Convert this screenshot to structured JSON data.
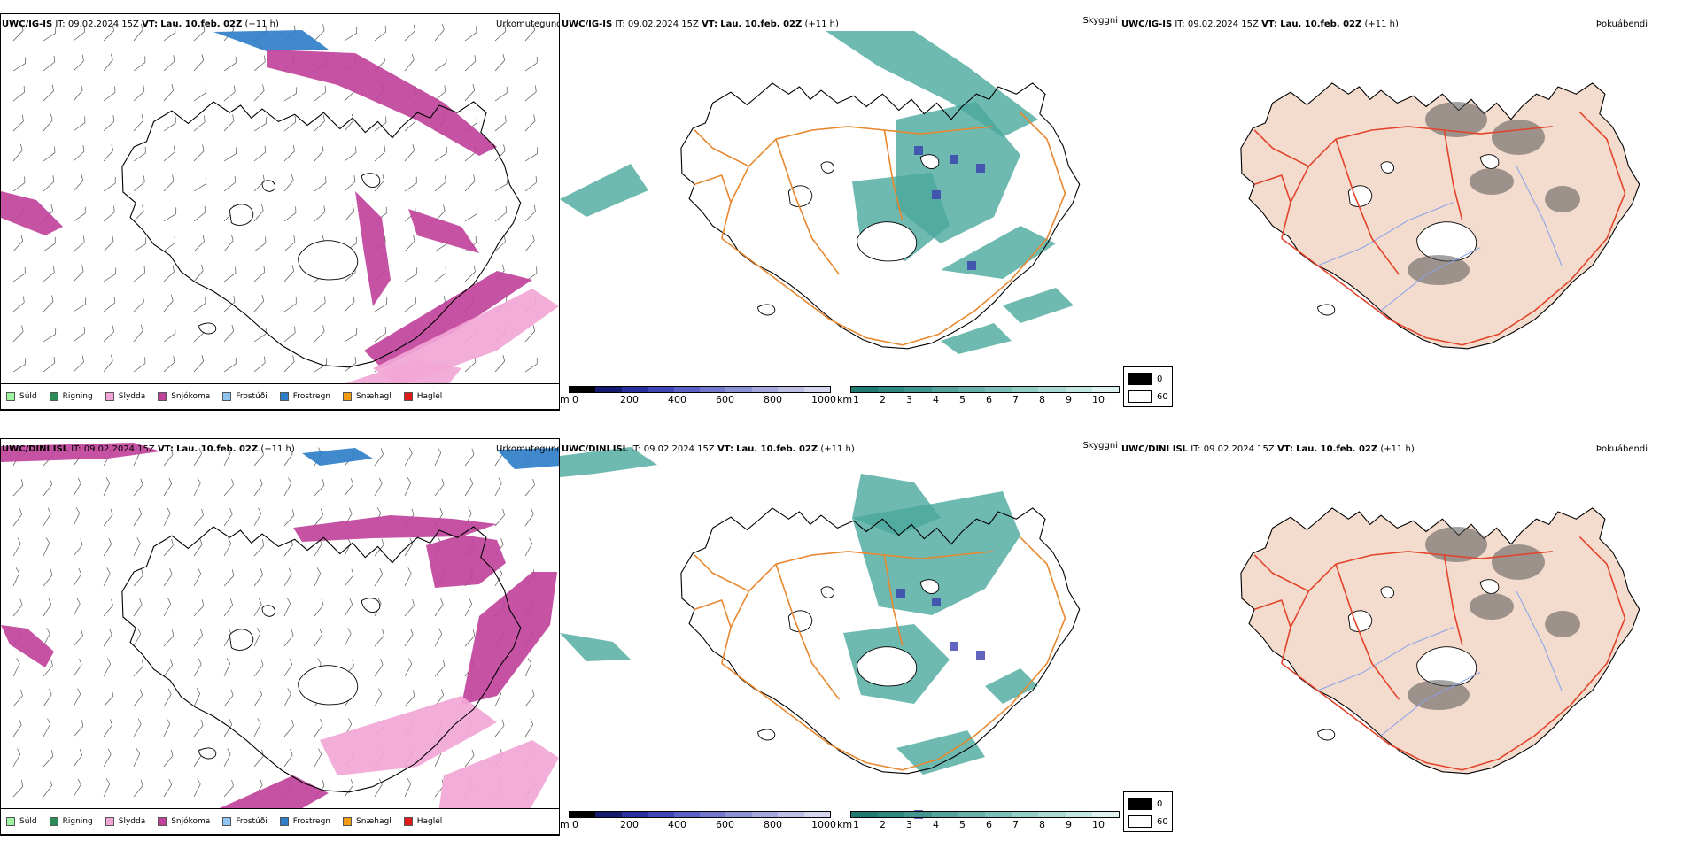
{
  "rows": [
    {
      "model": "UWC/IG-IS",
      "it_label": "IT:",
      "it_value": "09.02.2024 15Z",
      "vt_label": "VT:",
      "vt_value": "Lau. 10.feb. 02Z",
      "lead": "(+11 h)"
    },
    {
      "model": "UWC/DINI ISL",
      "it_label": "IT:",
      "it_value": "09.02.2024 15Z",
      "vt_label": "VT:",
      "vt_value": "Lau. 10.feb. 02Z",
      "lead": "(+11 h)"
    }
  ],
  "panels": {
    "precip_type": {
      "title": "Úrkomutegund"
    },
    "visibility": {
      "title": "Skyggni"
    },
    "fog": {
      "title": "Þokuábendi"
    }
  },
  "precip_legend": [
    {
      "label": "Súld",
      "color": "#9ff59f"
    },
    {
      "label": "Rigning",
      "color": "#2e8b57"
    },
    {
      "label": "Slydda",
      "color": "#f2a6d6"
    },
    {
      "label": "Snjókoma",
      "color": "#c0439b"
    },
    {
      "label": "Frostúði",
      "color": "#8ec5f2"
    },
    {
      "label": "Frostregn",
      "color": "#2f7fc8"
    },
    {
      "label": "Snæhagl",
      "color": "#f39c12"
    },
    {
      "label": "Haglél",
      "color": "#e11b1b"
    }
  ],
  "ceiling_bar": {
    "unit": "m",
    "ticks": [
      "0",
      "200",
      "400",
      "600",
      "800",
      "1000"
    ],
    "colors": [
      "#000000",
      "#141a6e",
      "#2a2f9e",
      "#4046b8",
      "#5a5fc4",
      "#7378cc",
      "#8c90d4",
      "#a5a8dc",
      "#bdbfe4",
      "#d6d7ee"
    ]
  },
  "visibility_bar": {
    "unit": "km",
    "ticks": [
      "1",
      "2",
      "3",
      "4",
      "5",
      "6",
      "7",
      "8",
      "9",
      "10"
    ],
    "colors": [
      "#1f7a72",
      "#2f8880",
      "#40968e",
      "#52a49c",
      "#66b2aa",
      "#7bc0b8",
      "#92cdc6",
      "#aadad4",
      "#c4e7e2",
      "#def3f0"
    ]
  },
  "fog_key": [
    {
      "label": "0",
      "color": "#000000"
    },
    {
      "label": "60",
      "color": "#ffffff"
    }
  ],
  "colors": {
    "coast": "#000000",
    "roads": "#e8872e",
    "fog_land": "#f3dccd",
    "fog_roads": "#e2432b",
    "fog_rivers": "#8aa2e8",
    "snow": "#c0439b",
    "sleet": "#f2a6d6",
    "frz_rain": "#2f7fc8",
    "vis_green": "#4aa89c",
    "ceiling_blue": "#3a3fb0"
  }
}
